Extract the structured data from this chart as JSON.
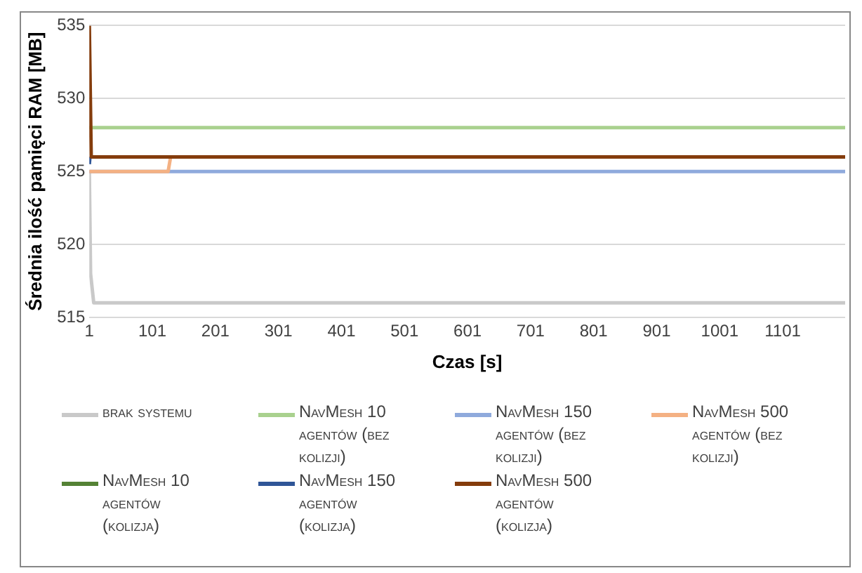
{
  "chart_data": {
    "type": "line",
    "xlabel": "Czas [s]",
    "ylabel": "Średnia ilość pamięci RAM [MB]",
    "xlim": [
      1,
      1200
    ],
    "xticks": [
      1,
      101,
      201,
      301,
      401,
      501,
      601,
      701,
      801,
      901,
      1001,
      1101
    ],
    "ylim": [
      515,
      535
    ],
    "yticks": [
      515,
      520,
      525,
      530,
      535
    ],
    "grid": "y",
    "legend": "bottom",
    "marker": "none",
    "line_style": "solid",
    "series": [
      {
        "name": "brak systemu",
        "color": "#c9c9c9",
        "x": [
          1,
          3,
          8,
          1200
        ],
        "values": [
          525,
          518,
          516,
          516
        ]
      },
      {
        "name": "NavMesh 10 agentów (bez kolizji)",
        "color": "#a9d18e",
        "x": [
          1,
          1200
        ],
        "values": [
          528,
          528
        ]
      },
      {
        "name": "NavMesh 150 agentów (bez kolizji)",
        "color": "#8faadc",
        "x": [
          1,
          1200
        ],
        "values": [
          525,
          525
        ]
      },
      {
        "name": "NavMesh 500 agentów (bez kolizji)",
        "color": "#f4b183",
        "x": [
          1,
          126,
          130
        ],
        "values": [
          525,
          525,
          526
        ]
      },
      {
        "name": "NavMesh 10 agentów (kolizja)",
        "color": "#548235"
      },
      {
        "name": "NavMesh 150 agentów (kolizja)",
        "color": "#2f5597",
        "x": [
          1,
          2
        ],
        "values": [
          525.5,
          526
        ]
      },
      {
        "name": "NavMesh 500 agentów (kolizja)",
        "color": "#843c0c",
        "x": [
          1,
          4,
          1200
        ],
        "values": [
          535,
          526,
          526
        ]
      }
    ]
  }
}
